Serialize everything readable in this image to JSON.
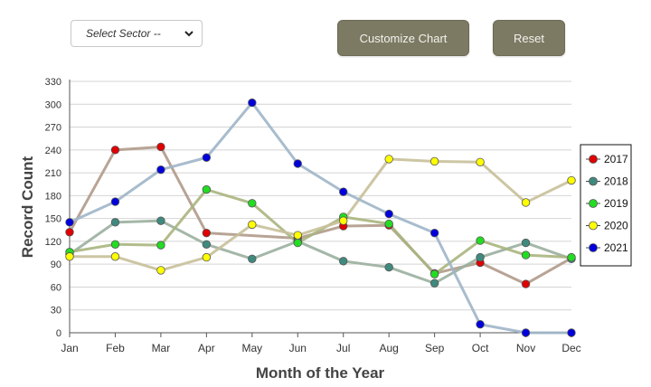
{
  "controls": {
    "sector_select_label": "Select Sector --",
    "customize_button": "Customize Chart",
    "reset_button": "Reset"
  },
  "chart_data": {
    "type": "line",
    "title": "",
    "xlabel": "Month of the Year",
    "ylabel": "Record Count",
    "ylim": [
      0,
      330
    ],
    "yticks": [
      0,
      30,
      60,
      90,
      120,
      150,
      180,
      210,
      240,
      270,
      300,
      330
    ],
    "grid": true,
    "legend_position": "right",
    "categories": [
      "Jan",
      "Feb",
      "Mar",
      "Apr",
      "May",
      "Jun",
      "Jul",
      "Aug",
      "Sep",
      "Oct",
      "Nov",
      "Dec"
    ],
    "series": [
      {
        "name": "2017",
        "marker_color": "#e00000",
        "line_color": "#b09a8a",
        "values": [
          132,
          240,
          244,
          131,
          null,
          124,
          140,
          141,
          78,
          92,
          64,
          98
        ]
      },
      {
        "name": "2018",
        "marker_color": "#3f8a7e",
        "line_color": "#9aaf9e",
        "values": [
          103,
          145,
          147,
          116,
          97,
          120,
          94,
          86,
          65,
          99,
          118,
          97
        ]
      },
      {
        "name": "2019",
        "marker_color": "#22dd22",
        "line_color": "#a9b57e",
        "values": [
          106,
          116,
          115,
          188,
          170,
          118,
          152,
          143,
          77,
          121,
          102,
          99
        ]
      },
      {
        "name": "2020",
        "marker_color": "#ffff00",
        "line_color": "#c8c09a",
        "values": [
          100,
          100,
          82,
          99,
          142,
          128,
          147,
          228,
          225,
          224,
          171,
          200
        ]
      },
      {
        "name": "2021",
        "marker_color": "#0000dd",
        "line_color": "#9fb5c8",
        "values": [
          145,
          172,
          214,
          230,
          302,
          222,
          185,
          156,
          131,
          11,
          0,
          0
        ]
      }
    ]
  }
}
